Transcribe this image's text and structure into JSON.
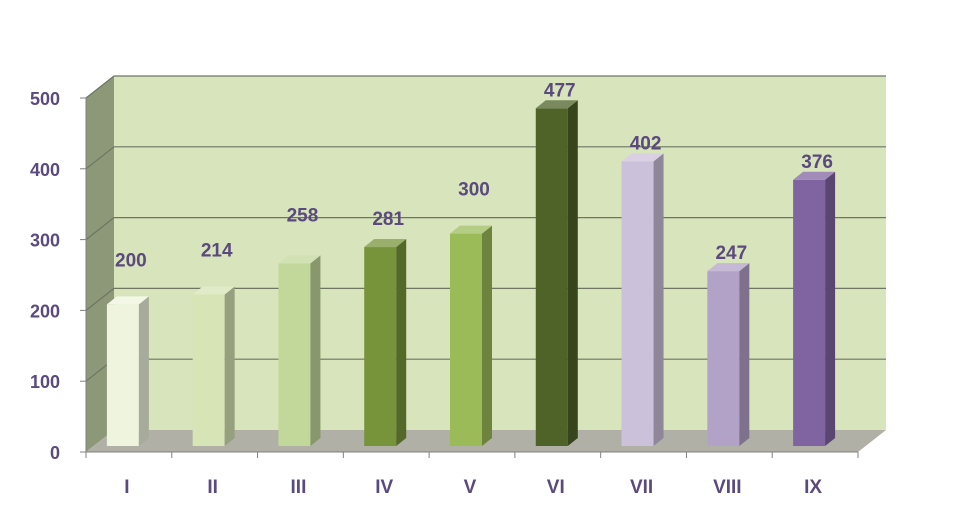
{
  "chart_data": {
    "type": "bar",
    "style": "3d-column",
    "categories": [
      "I",
      "II",
      "III",
      "IV",
      "V",
      "VI",
      "VII",
      "VIII",
      "IX"
    ],
    "values": [
      200,
      214,
      258,
      281,
      300,
      477,
      402,
      247,
      376
    ],
    "data_labels": [
      "200",
      "214",
      "258",
      "281",
      "300",
      "477",
      "402",
      "247",
      "376"
    ],
    "y_ticks": [
      "0",
      "100",
      "200",
      "300",
      "400",
      "500"
    ],
    "ylim": [
      0,
      500
    ],
    "title": "",
    "xlabel": "",
    "ylabel": "",
    "grid": true,
    "legend": "none",
    "colors": [
      "#eef4de",
      "#d6e4b6",
      "#c2d79a",
      "#77943a",
      "#9bbb59",
      "#4f6228",
      "#ccc1da",
      "#b3a2c7",
      "#8064a2"
    ],
    "text_color": "#5b4a7d",
    "wall_color": "#d8e4bc",
    "side_wall_color": "#8c9878",
    "floor_color": "#b0b0a6"
  }
}
